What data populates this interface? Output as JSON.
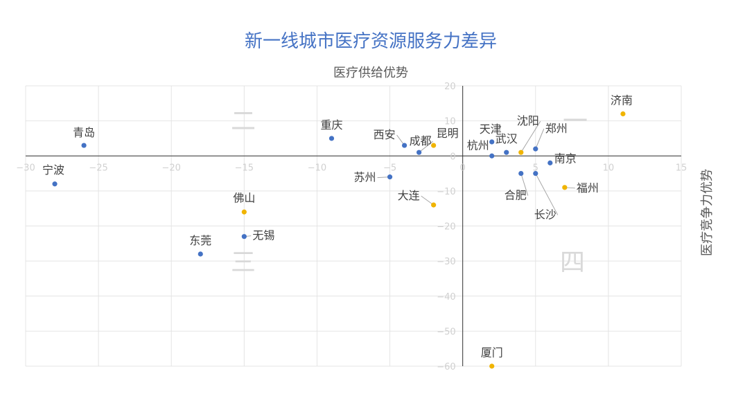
{
  "chart_data": {
    "type": "scatter",
    "title": "新一线城市医疗资源服务力差异",
    "xlabel": "医疗供给优势",
    "ylabel": "医疗竞争力优势",
    "xlim": [
      -30,
      15
    ],
    "ylim": [
      -60,
      20
    ],
    "x_ticks": [
      "−30",
      "−25",
      "−20",
      "−15",
      "−10",
      "−5",
      "0",
      "5",
      "10",
      "15"
    ],
    "y_ticks": [
      "20",
      "10",
      "0",
      "−10",
      "−20",
      "−30",
      "−40",
      "−50",
      "−60"
    ],
    "grid": true,
    "quadrant_labels": [
      "一",
      "二",
      "三",
      "四"
    ],
    "colors": {
      "blue": "#4472c4",
      "yellow": "#f0b400"
    },
    "points": [
      {
        "label": "济南",
        "x": 11,
        "y": 12,
        "color": "yellow"
      },
      {
        "label": "青岛",
        "x": -26,
        "y": 3,
        "color": "blue"
      },
      {
        "label": "重庆",
        "x": -9,
        "y": 5,
        "color": "blue"
      },
      {
        "label": "西安",
        "x": -4,
        "y": 3,
        "color": "blue"
      },
      {
        "label": "成都",
        "x": -3,
        "y": 1,
        "color": "blue"
      },
      {
        "label": "昆明",
        "x": -2,
        "y": 3,
        "color": "yellow"
      },
      {
        "label": "天津",
        "x": 2,
        "y": 4,
        "color": "blue"
      },
      {
        "label": "杭州",
        "x": 2,
        "y": 0,
        "color": "blue"
      },
      {
        "label": "武汉",
        "x": 3,
        "y": 1,
        "color": "blue"
      },
      {
        "label": "沈阳",
        "x": 4,
        "y": 1,
        "color": "yellow"
      },
      {
        "label": "郑州",
        "x": 5,
        "y": 2,
        "color": "blue"
      },
      {
        "label": "南京",
        "x": 6,
        "y": -2,
        "color": "blue"
      },
      {
        "label": "宁波",
        "x": -28,
        "y": -8,
        "color": "blue"
      },
      {
        "label": "苏州",
        "x": -5,
        "y": -6,
        "color": "blue"
      },
      {
        "label": "合肥",
        "x": 4,
        "y": -5,
        "color": "blue"
      },
      {
        "label": "长沙",
        "x": 5,
        "y": -5,
        "color": "blue"
      },
      {
        "label": "福州",
        "x": 7,
        "y": -9,
        "color": "yellow"
      },
      {
        "label": "大连",
        "x": -2,
        "y": -14,
        "color": "yellow"
      },
      {
        "label": "佛山",
        "x": -15,
        "y": -16,
        "color": "yellow"
      },
      {
        "label": "无锡",
        "x": -15,
        "y": -23,
        "color": "blue"
      },
      {
        "label": "东莞",
        "x": -18,
        "y": -28,
        "color": "blue"
      },
      {
        "label": "厦门",
        "x": 2,
        "y": -60,
        "color": "yellow"
      }
    ]
  }
}
